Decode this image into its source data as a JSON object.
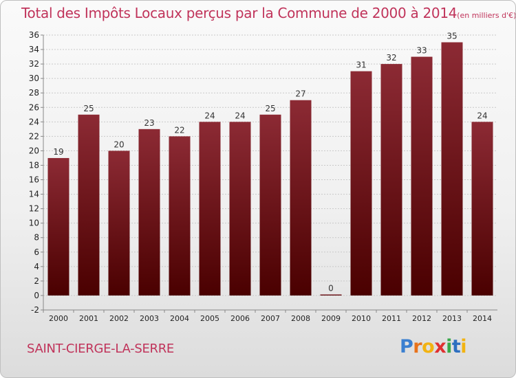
{
  "chart_data": {
    "type": "bar",
    "title": "Total des Impôts Locaux perçus par la Commune de 2000 à 2014",
    "unit": "(en milliers d'€)",
    "categories": [
      "2000",
      "2001",
      "2002",
      "2003",
      "2004",
      "2005",
      "2006",
      "2007",
      "2008",
      "2009",
      "2010",
      "2011",
      "2012",
      "2013",
      "2014"
    ],
    "values": [
      19,
      25,
      20,
      23,
      22,
      24,
      24,
      25,
      27,
      0,
      31,
      32,
      33,
      35,
      24
    ],
    "ylim": [
      -2,
      36
    ],
    "ytick_step": 2,
    "grid": true,
    "xlabel": "",
    "ylabel": "",
    "bar_color": "#7a1a24"
  },
  "commune": "SAINT-CIERGE-LA-SERRE",
  "logo": {
    "letters": [
      "P",
      "r",
      "o",
      "x",
      "i",
      "t",
      "i"
    ],
    "colors": [
      "#3a7fd0",
      "#e8731c",
      "#f2b312",
      "#e03030",
      "#3aa84a",
      "#2d6fc0",
      "#f2b312"
    ]
  }
}
